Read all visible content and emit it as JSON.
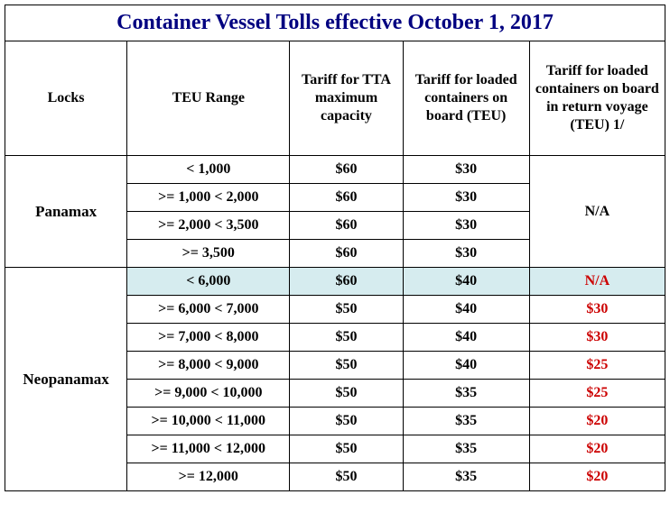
{
  "title": "Container Vessel Tolls effective October 1, 2017",
  "headers": {
    "locks": "Locks",
    "range": "TEU Range",
    "tta": "Tariff for TTA maximum capacity",
    "loaded": "Tariff for loaded containers on board (TEU)",
    "return": "Tariff for loaded containers on board in return voyage (TEU) 1/"
  },
  "panamax": {
    "label": "Panamax",
    "na": "N/A",
    "rows": [
      {
        "range": "< 1,000",
        "tta": "$60",
        "loaded": "$30"
      },
      {
        "range": ">= 1,000 < 2,000",
        "tta": "$60",
        "loaded": "$30"
      },
      {
        "range": ">= 2,000 < 3,500",
        "tta": "$60",
        "loaded": "$30"
      },
      {
        "range": ">= 3,500",
        "tta": "$60",
        "loaded": "$30"
      }
    ]
  },
  "neopanamax": {
    "label": "Neopanamax",
    "rows": [
      {
        "range": "< 6,000",
        "tta": "$60",
        "loaded": "$40",
        "ret": "N/A",
        "hl": true
      },
      {
        "range": ">= 6,000 < 7,000",
        "tta": "$50",
        "loaded": "$40",
        "ret": "$30"
      },
      {
        "range": ">= 7,000 < 8,000",
        "tta": "$50",
        "loaded": "$40",
        "ret": "$30"
      },
      {
        "range": ">= 8,000 < 9,000",
        "tta": "$50",
        "loaded": "$40",
        "ret": "$25"
      },
      {
        "range": ">= 9,000 < 10,000",
        "tta": "$50",
        "loaded": "$35",
        "ret": "$25"
      },
      {
        "range": ">= 10,000 < 11,000",
        "tta": "$50",
        "loaded": "$35",
        "ret": "$20"
      },
      {
        "range": ">= 11,000 < 12,000",
        "tta": "$50",
        "loaded": "$35",
        "ret": "$20"
      },
      {
        "range": ">= 12,000",
        "tta": "$50",
        "loaded": "$35",
        "ret": "$20"
      }
    ]
  }
}
